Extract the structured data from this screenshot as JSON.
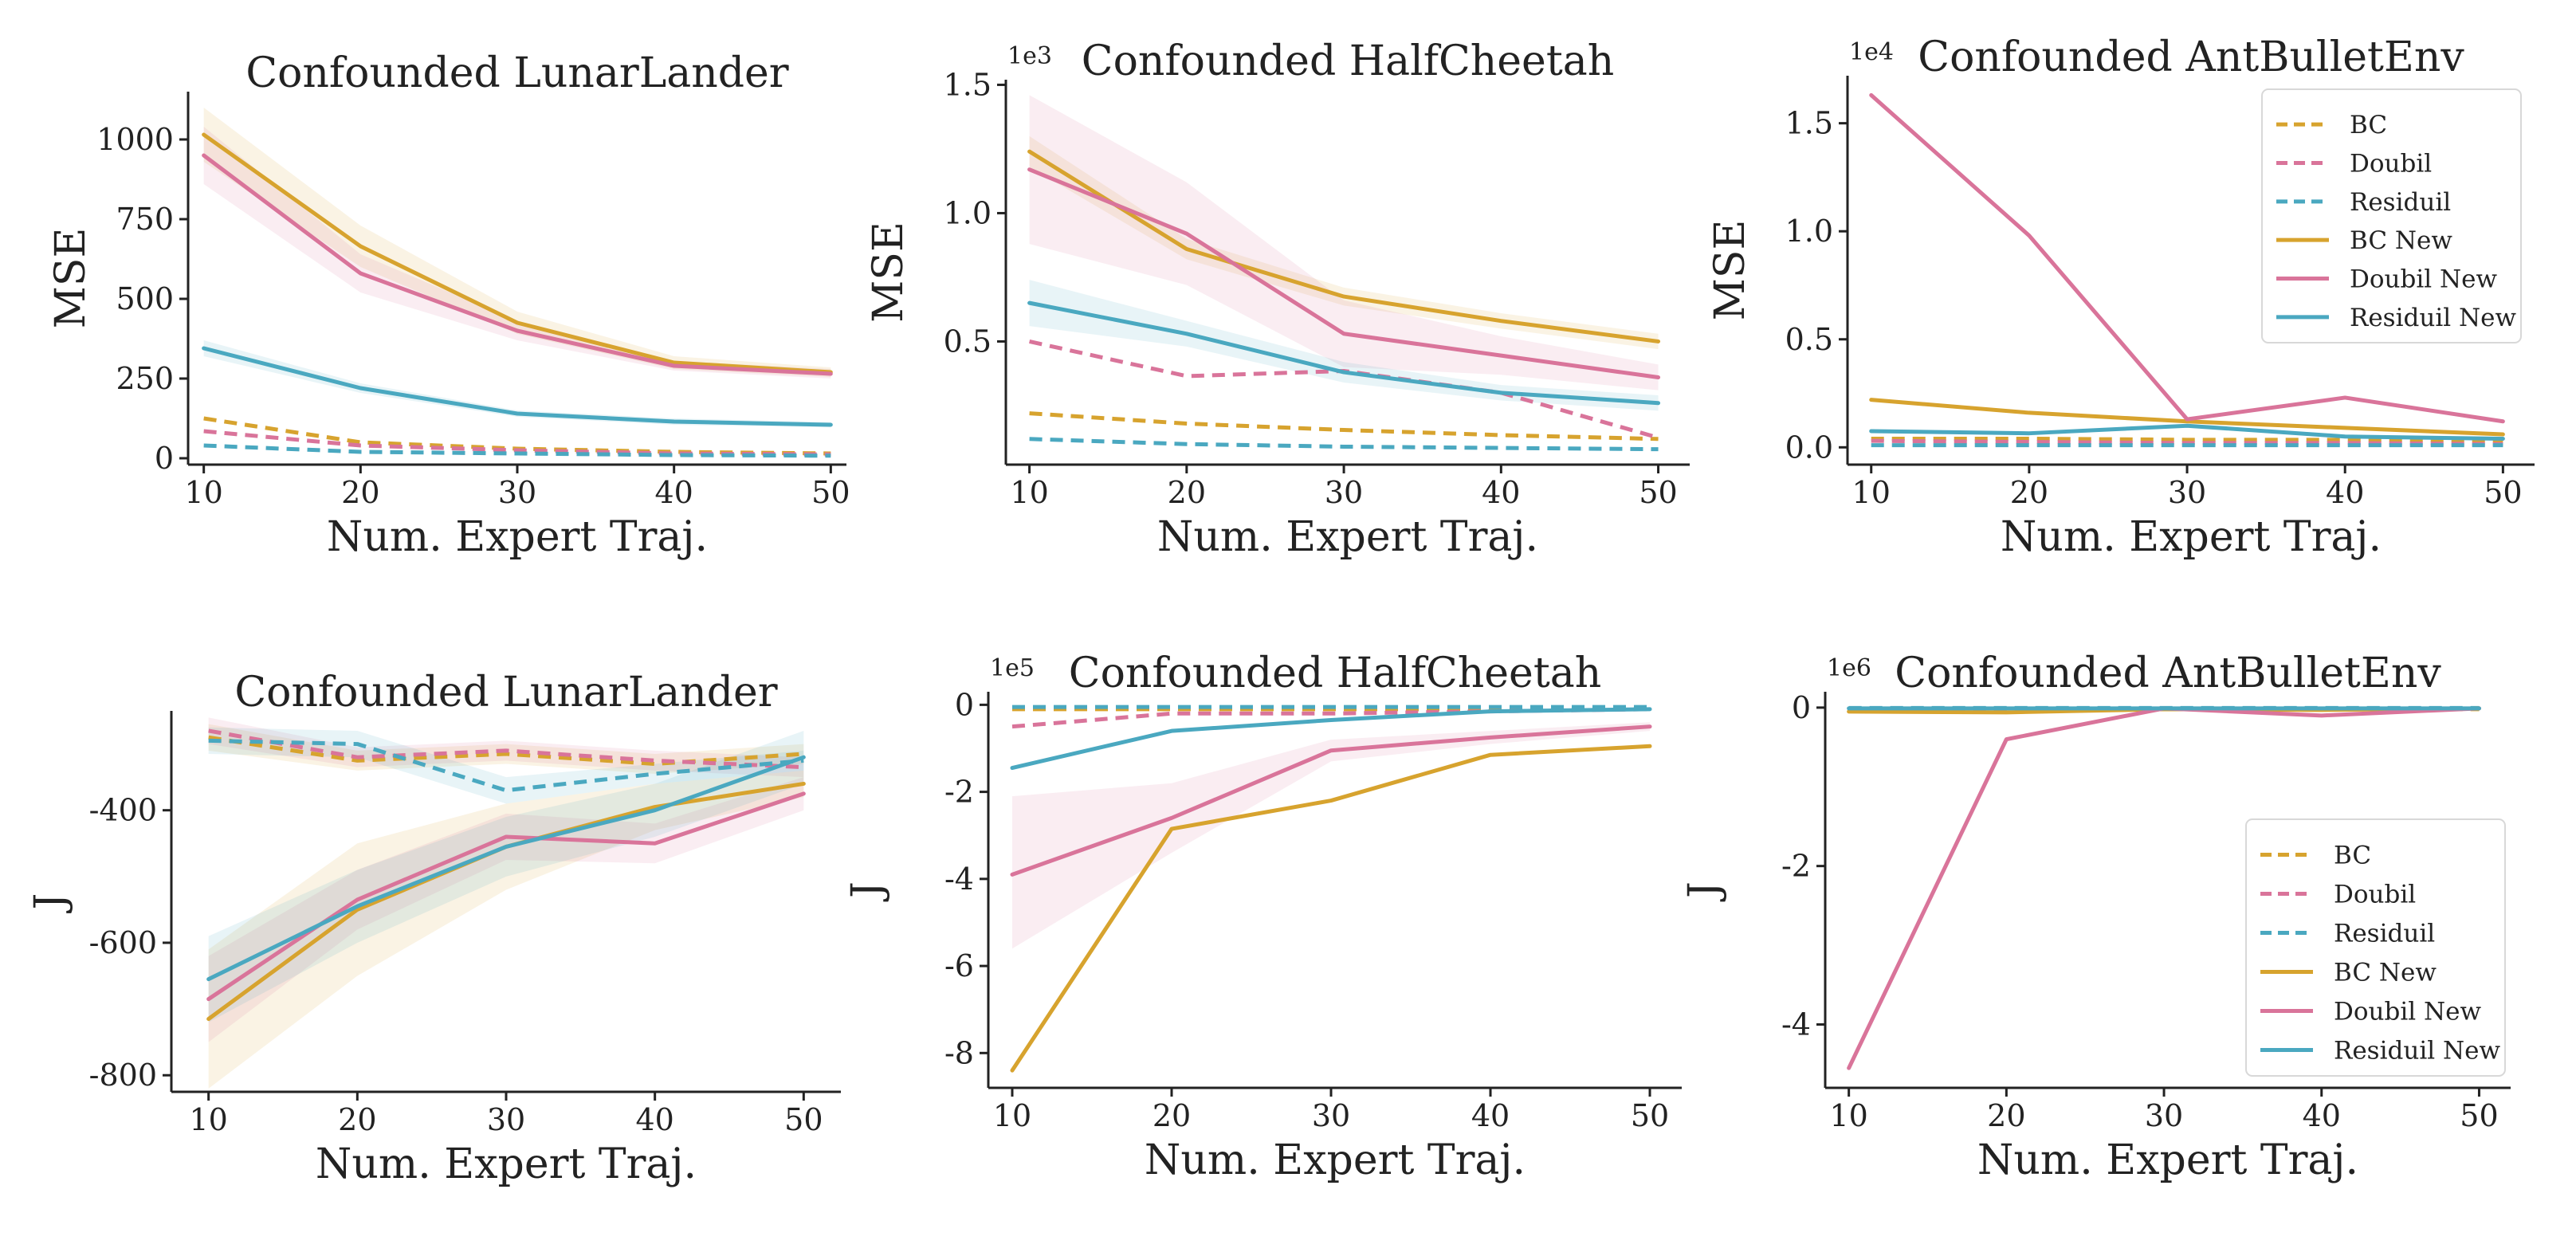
{
  "colors": {
    "BC": "#D7A32E",
    "Doubil": "#D9749A",
    "Residuil": "#4AA8C0"
  },
  "chart_data": [
    {
      "type": "line",
      "title": "Confounded LunarLander",
      "xlabel": "Num. Expert Traj.",
      "ylabel": "MSE",
      "x": [
        10,
        20,
        30,
        40,
        50
      ],
      "xlim": [
        9,
        51
      ],
      "ylim": [
        -20,
        1150
      ],
      "yticks": [
        0,
        250,
        500,
        750,
        1000
      ],
      "ytick_labels": [
        "0",
        "250",
        "500",
        "750",
        "1000"
      ],
      "multiplier": "",
      "legend": "none",
      "series": [
        {
          "name": "BC",
          "style": "dashed",
          "values": [
            125,
            50,
            30,
            20,
            15
          ]
        },
        {
          "name": "Doubil",
          "style": "dashed",
          "values": [
            85,
            40,
            25,
            15,
            12
          ]
        },
        {
          "name": "Residuil",
          "style": "dashed",
          "values": [
            40,
            20,
            15,
            10,
            8
          ]
        },
        {
          "name": "BC New",
          "style": "solid",
          "values": [
            1015,
            665,
            425,
            300,
            270
          ],
          "band": [
            [
              930,
              1100
            ],
            [
              600,
              730
            ],
            [
              390,
              460
            ],
            [
              280,
              320
            ],
            [
              255,
              285
            ]
          ]
        },
        {
          "name": "Doubil New",
          "style": "solid",
          "values": [
            950,
            580,
            400,
            290,
            265
          ],
          "band": [
            [
              860,
              1040
            ],
            [
              520,
              640
            ],
            [
              370,
              430
            ],
            [
              275,
              305
            ],
            [
              250,
              280
            ]
          ]
        },
        {
          "name": "Residuil New",
          "style": "solid",
          "values": [
            345,
            220,
            140,
            115,
            105
          ],
          "band": [
            [
              320,
              370
            ],
            [
              205,
              235
            ],
            [
              130,
              150
            ],
            [
              105,
              125
            ],
            [
              97,
              113
            ]
          ]
        }
      ]
    },
    {
      "type": "line",
      "title": "Confounded HalfCheetah",
      "xlabel": "Num. Expert Traj.",
      "ylabel": "MSE",
      "x": [
        10,
        20,
        30,
        40,
        50
      ],
      "xlim": [
        8.5,
        52
      ],
      "ylim": [
        0.02,
        1.52
      ],
      "yticks": [
        0.5,
        1.0,
        1.5
      ],
      "ytick_labels": [
        "0.5",
        "1.0",
        "1.5"
      ],
      "multiplier": "1e3",
      "legend": "none",
      "series": [
        {
          "name": "BC",
          "style": "dashed",
          "values": [
            0.22,
            0.18,
            0.155,
            0.135,
            0.12
          ]
        },
        {
          "name": "Doubil",
          "style": "dashed",
          "values": [
            0.5,
            0.365,
            0.385,
            0.3,
            0.125
          ]
        },
        {
          "name": "Residuil",
          "style": "dashed",
          "values": [
            0.12,
            0.1,
            0.09,
            0.085,
            0.08
          ]
        },
        {
          "name": "BC New",
          "style": "solid",
          "values": [
            1.24,
            0.86,
            0.675,
            0.58,
            0.5
          ],
          "band": [
            [
              1.18,
              1.3
            ],
            [
              0.82,
              0.9
            ],
            [
              0.64,
              0.71
            ],
            [
              0.55,
              0.61
            ],
            [
              0.47,
              0.53
            ]
          ]
        },
        {
          "name": "Doubil New",
          "style": "solid",
          "values": [
            1.17,
            0.92,
            0.53,
            0.445,
            0.36
          ],
          "band": [
            [
              0.88,
              1.46
            ],
            [
              0.72,
              1.12
            ],
            [
              0.4,
              0.66
            ],
            [
              0.37,
              0.52
            ],
            [
              0.31,
              0.41
            ]
          ]
        },
        {
          "name": "Residuil New",
          "style": "solid",
          "values": [
            0.65,
            0.53,
            0.38,
            0.3,
            0.26
          ],
          "band": [
            [
              0.56,
              0.74
            ],
            [
              0.48,
              0.58
            ],
            [
              0.34,
              0.42
            ],
            [
              0.27,
              0.33
            ],
            [
              0.23,
              0.29
            ]
          ]
        }
      ]
    },
    {
      "type": "line",
      "title": "Confounded AntBulletEnv",
      "xlabel": "Num. Expert Traj.",
      "ylabel": "MSE",
      "x": [
        10,
        20,
        30,
        40,
        50
      ],
      "xlim": [
        8.5,
        52
      ],
      "ylim": [
        -0.08,
        1.72
      ],
      "yticks": [
        0.0,
        0.5,
        1.0,
        1.5
      ],
      "ytick_labels": [
        "0.0",
        "0.5",
        "1.0",
        "1.5"
      ],
      "multiplier": "1e4",
      "legend": "top-right",
      "series": [
        {
          "name": "BC",
          "style": "dashed",
          "values": [
            0.04,
            0.04,
            0.035,
            0.035,
            0.03
          ]
        },
        {
          "name": "Doubil",
          "style": "dashed",
          "values": [
            0.03,
            0.025,
            0.02,
            0.02,
            0.015
          ]
        },
        {
          "name": "Residuil",
          "style": "dashed",
          "values": [
            0.01,
            0.01,
            0.01,
            0.01,
            0.01
          ]
        },
        {
          "name": "BC New",
          "style": "solid",
          "values": [
            0.22,
            0.16,
            0.12,
            0.09,
            0.06
          ]
        },
        {
          "name": "Doubil New",
          "style": "solid",
          "values": [
            1.63,
            0.98,
            0.13,
            0.23,
            0.12
          ]
        },
        {
          "name": "Residuil New",
          "style": "solid",
          "values": [
            0.075,
            0.065,
            0.1,
            0.05,
            0.04
          ]
        }
      ]
    },
    {
      "type": "line",
      "title": "Confounded LunarLander",
      "xlabel": "Num. Expert Traj.",
      "ylabel": "J",
      "x": [
        10,
        20,
        30,
        40,
        50
      ],
      "xlim": [
        7.5,
        52.5
      ],
      "ylim": [
        -825,
        -250
      ],
      "yticks": [
        -800,
        -600,
        -400
      ],
      "ytick_labels": [
        "-800",
        "-600",
        "-400"
      ],
      "multiplier": "",
      "legend": "none",
      "series": [
        {
          "name": "BC",
          "style": "dashed",
          "values": [
            -290,
            -325,
            -315,
            -330,
            -315
          ],
          "band": [
            [
              -310,
              -270
            ],
            [
              -340,
              -310
            ],
            [
              -330,
              -300
            ],
            [
              -345,
              -315
            ],
            [
              -330,
              -300
            ]
          ]
        },
        {
          "name": "Doubil",
          "style": "dashed",
          "values": [
            -280,
            -320,
            -310,
            -325,
            -335
          ],
          "band": [
            [
              -300,
              -260
            ],
            [
              -335,
              -305
            ],
            [
              -325,
              -295
            ],
            [
              -340,
              -310
            ],
            [
              -350,
              -320
            ]
          ]
        },
        {
          "name": "Residuil",
          "style": "dashed",
          "values": [
            -295,
            -300,
            -370,
            -345,
            -325
          ],
          "band": [
            [
              -315,
              -275
            ],
            [
              -320,
              -280
            ],
            [
              -390,
              -350
            ],
            [
              -360,
              -330
            ],
            [
              -340,
              -310
            ]
          ]
        },
        {
          "name": "BC New",
          "style": "solid",
          "values": [
            -715,
            -550,
            -455,
            -395,
            -360
          ],
          "band": [
            [
              -820,
              -610
            ],
            [
              -650,
              -450
            ],
            [
              -520,
              -390
            ],
            [
              -430,
              -360
            ],
            [
              -380,
              -340
            ]
          ]
        },
        {
          "name": "Doubil New",
          "style": "solid",
          "values": [
            -685,
            -535,
            -440,
            -450,
            -375
          ],
          "band": [
            [
              -750,
              -620
            ],
            [
              -580,
              -490
            ],
            [
              -475,
              -405
            ],
            [
              -480,
              -420
            ],
            [
              -400,
              -350
            ]
          ]
        },
        {
          "name": "Residuil New",
          "style": "solid",
          "values": [
            -655,
            -545,
            -455,
            -400,
            -320
          ],
          "band": [
            [
              -720,
              -590
            ],
            [
              -600,
              -490
            ],
            [
              -500,
              -410
            ],
            [
              -440,
              -360
            ],
            [
              -360,
              -280
            ]
          ]
        }
      ]
    },
    {
      "type": "line",
      "title": "Confounded HalfCheetah",
      "xlabel": "Num. Expert Traj.",
      "ylabel": "J",
      "x": [
        10,
        20,
        30,
        40,
        50
      ],
      "xlim": [
        8.5,
        52
      ],
      "ylim": [
        -8.8,
        0.3
      ],
      "yticks": [
        -8,
        -6,
        -4,
        -2,
        0
      ],
      "ytick_labels": [
        "-8",
        "-6",
        "-4",
        "-2",
        "0"
      ],
      "multiplier": "1e5",
      "legend": "none",
      "series": [
        {
          "name": "BC",
          "style": "dashed",
          "values": [
            -0.1,
            -0.1,
            -0.1,
            -0.1,
            -0.1
          ]
        },
        {
          "name": "Doubil",
          "style": "dashed",
          "values": [
            -0.5,
            -0.2,
            -0.2,
            -0.15,
            -0.1
          ]
        },
        {
          "name": "Residuil",
          "style": "dashed",
          "values": [
            -0.05,
            -0.05,
            -0.05,
            -0.05,
            -0.05
          ]
        },
        {
          "name": "BC New",
          "style": "solid",
          "values": [
            -8.4,
            -2.85,
            -2.2,
            -1.15,
            -0.95
          ]
        },
        {
          "name": "Doubil New",
          "style": "solid",
          "values": [
            -3.9,
            -2.6,
            -1.05,
            -0.75,
            -0.5
          ],
          "band": [
            [
              -5.6,
              -2.1
            ],
            [
              -3.4,
              -1.8
            ],
            [
              -1.3,
              -0.8
            ],
            [
              -0.9,
              -0.6
            ],
            [
              -0.6,
              -0.4
            ]
          ]
        },
        {
          "name": "Residuil New",
          "style": "solid",
          "values": [
            -1.45,
            -0.6,
            -0.35,
            -0.15,
            -0.1
          ]
        }
      ]
    },
    {
      "type": "line",
      "title": "Confounded AntBulletEnv",
      "xlabel": "Num. Expert Traj.",
      "ylabel": "J",
      "x": [
        10,
        20,
        30,
        40,
        50
      ],
      "xlim": [
        8.5,
        52
      ],
      "ylim": [
        -4.8,
        0.2
      ],
      "yticks": [
        -4,
        -2,
        0
      ],
      "ytick_labels": [
        "-4",
        "-2",
        "0"
      ],
      "multiplier": "1e6",
      "legend": "bottom-right",
      "series": [
        {
          "name": "BC",
          "style": "dashed",
          "values": [
            -0.02,
            -0.02,
            -0.02,
            -0.02,
            -0.02
          ]
        },
        {
          "name": "Doubil",
          "style": "dashed",
          "values": [
            -0.01,
            -0.01,
            -0.01,
            -0.01,
            -0.01
          ]
        },
        {
          "name": "Residuil",
          "style": "dashed",
          "values": [
            -0.005,
            -0.005,
            -0.005,
            -0.005,
            -0.005
          ]
        },
        {
          "name": "BC New",
          "style": "solid",
          "values": [
            -0.05,
            -0.06,
            -0.02,
            -0.03,
            -0.01
          ]
        },
        {
          "name": "Doubil New",
          "style": "solid",
          "values": [
            -4.55,
            -0.4,
            -0.01,
            -0.1,
            -0.01
          ]
        },
        {
          "name": "Residuil New",
          "style": "solid",
          "values": [
            -0.01,
            -0.01,
            -0.01,
            -0.01,
            -0.01
          ]
        }
      ]
    }
  ]
}
